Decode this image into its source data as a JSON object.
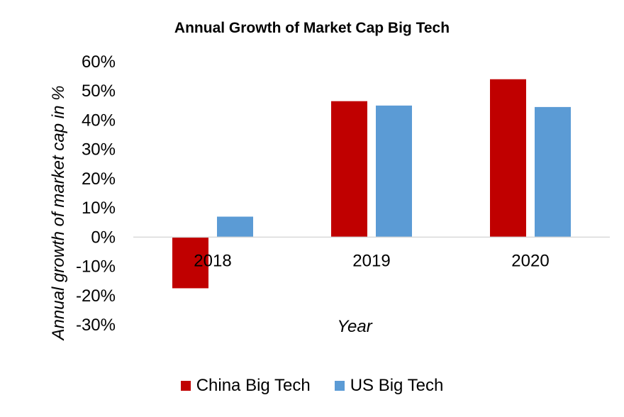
{
  "chart_data": {
    "type": "bar",
    "title": "Annual Growth of Market Cap Big Tech",
    "xlabel": "Year",
    "ylabel": "Annual growth of market cap in %",
    "categories": [
      "2018",
      "2019",
      "2020"
    ],
    "series": [
      {
        "name": "China Big Tech",
        "color": "#c00000",
        "values": [
          -17.5,
          46.5,
          54
        ]
      },
      {
        "name": "US Big Tech",
        "color": "#5b9bd5",
        "values": [
          7,
          45,
          44.5
        ]
      }
    ],
    "ylim": [
      -30,
      60
    ],
    "yticks": [
      60,
      50,
      40,
      30,
      20,
      10,
      0,
      -10,
      -20,
      -30
    ],
    "ytick_labels": [
      "60%",
      "50%",
      "40%",
      "30%",
      "20%",
      "10%",
      "0%",
      "-10%",
      "-20%",
      "-30%"
    ],
    "grid": false,
    "legend_position": "bottom"
  }
}
